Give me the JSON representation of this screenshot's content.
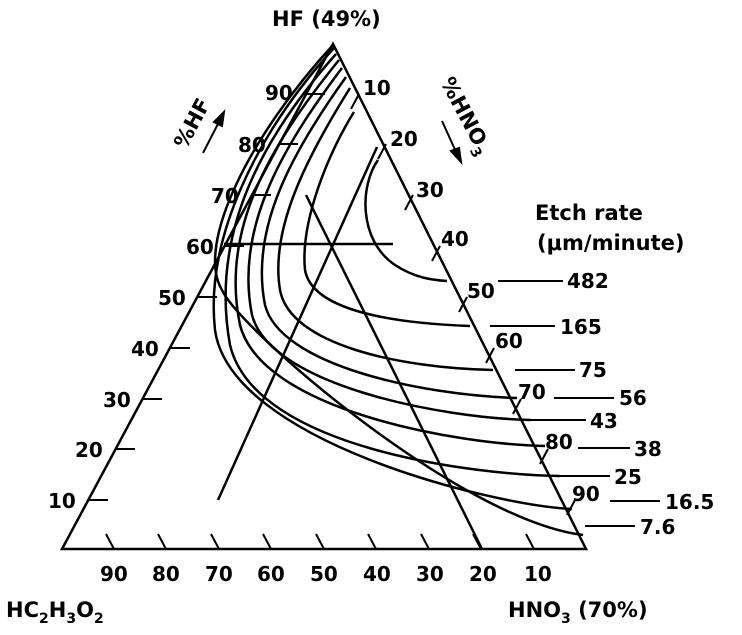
{
  "chart_data": {
    "type": "ternary",
    "corners": {
      "top": "HF (49%)",
      "bottom_left_main": "HC",
      "bottom_left_sub1": "2",
      "bottom_left_mid": "H",
      "bottom_left_sub2": "3",
      "bottom_left_end": "O",
      "bottom_left_sub3": "2",
      "bottom_right_main": "HNO",
      "bottom_right_sub": "3",
      "bottom_right_end": " (70%)"
    },
    "axis_titles": {
      "left": "%HF",
      "right_main": "%HNO",
      "right_sub": "3"
    },
    "left_ticks": [
      "10",
      "20",
      "30",
      "40",
      "50",
      "60",
      "70",
      "80",
      "90"
    ],
    "right_ticks": [
      "10",
      "20",
      "30",
      "40",
      "50",
      "60",
      "70",
      "80",
      "90"
    ],
    "bottom_ticks": [
      "90",
      "80",
      "70",
      "60",
      "50",
      "40",
      "30",
      "20",
      "10"
    ],
    "legend_title_1": "Etch rate",
    "legend_title_2": "(μm/minute)",
    "etch_rates": [
      "482",
      "165",
      "75",
      "56",
      "43",
      "38",
      "25",
      "16.5",
      "7.6"
    ]
  }
}
